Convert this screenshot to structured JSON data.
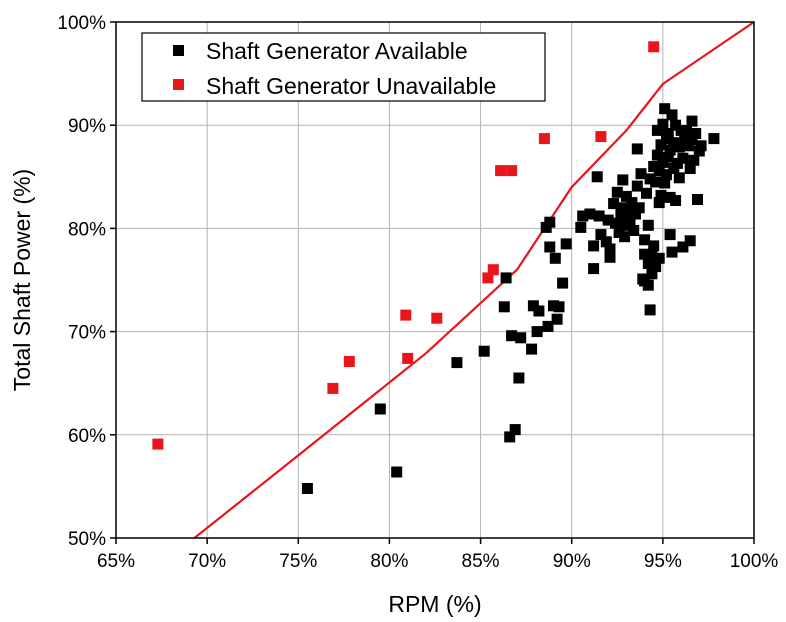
{
  "chart_data": {
    "type": "scatter",
    "xlabel": "RPM (%)",
    "ylabel": "Total Shaft Power (%)",
    "xlim": [
      65,
      100
    ],
    "ylim": [
      50,
      100
    ],
    "x_ticks": [
      65,
      70,
      75,
      80,
      85,
      90,
      95,
      100
    ],
    "y_ticks": [
      50,
      60,
      70,
      80,
      90,
      100
    ],
    "x_tick_labels": [
      "65%",
      "70%",
      "75%",
      "80%",
      "85%",
      "90%",
      "95%",
      "100%"
    ],
    "y_tick_labels": [
      "50%",
      "60%",
      "70%",
      "80%",
      "90%",
      "100%"
    ],
    "grid": true,
    "legend_position": "top-left",
    "series": [
      {
        "name": "Shaft Generator Available",
        "color": "#000000",
        "marker": "square",
        "points": [
          [
            75.5,
            54.8
          ],
          [
            79.5,
            62.5
          ],
          [
            80.4,
            56.4
          ],
          [
            83.7,
            67.0
          ],
          [
            85.2,
            68.1
          ],
          [
            86.3,
            72.4
          ],
          [
            86.4,
            75.2
          ],
          [
            86.6,
            59.8
          ],
          [
            86.7,
            69.6
          ],
          [
            86.9,
            60.5
          ],
          [
            87.1,
            65.5
          ],
          [
            87.2,
            69.4
          ],
          [
            87.8,
            68.3
          ],
          [
            87.9,
            72.5
          ],
          [
            88.1,
            70.0
          ],
          [
            88.2,
            72.0
          ],
          [
            88.6,
            80.1
          ],
          [
            88.7,
            70.5
          ],
          [
            88.8,
            78.2
          ],
          [
            88.8,
            80.6
          ],
          [
            89.0,
            72.5
          ],
          [
            89.1,
            77.1
          ],
          [
            89.2,
            71.2
          ],
          [
            89.3,
            72.4
          ],
          [
            89.5,
            74.7
          ],
          [
            89.7,
            78.5
          ],
          [
            90.5,
            80.1
          ],
          [
            90.6,
            81.2
          ],
          [
            91.0,
            81.4
          ],
          [
            91.2,
            76.1
          ],
          [
            91.2,
            78.3
          ],
          [
            91.4,
            85.0
          ],
          [
            91.5,
            81.2
          ],
          [
            91.6,
            79.4
          ],
          [
            91.9,
            78.7
          ],
          [
            92.0,
            80.8
          ],
          [
            92.1,
            77.2
          ],
          [
            92.1,
            78.0
          ],
          [
            92.3,
            82.4
          ],
          [
            92.4,
            80.5
          ],
          [
            92.5,
            83.5
          ],
          [
            92.6,
            79.6
          ],
          [
            92.7,
            81.0
          ],
          [
            92.7,
            82.0
          ],
          [
            92.8,
            84.7
          ],
          [
            92.9,
            79.2
          ],
          [
            93.0,
            80.3
          ],
          [
            93.0,
            83.1
          ],
          [
            93.1,
            81.7
          ],
          [
            93.2,
            80.8
          ],
          [
            93.3,
            82.5
          ],
          [
            93.4,
            79.8
          ],
          [
            93.5,
            81.4
          ],
          [
            93.6,
            87.7
          ],
          [
            93.6,
            84.1
          ],
          [
            93.7,
            82.0
          ],
          [
            93.8,
            85.3
          ],
          [
            93.9,
            75.1
          ],
          [
            94.0,
            74.9
          ],
          [
            94.0,
            77.5
          ],
          [
            94.0,
            78.9
          ],
          [
            94.1,
            83.4
          ],
          [
            94.2,
            74.5
          ],
          [
            94.2,
            76.6
          ],
          [
            94.2,
            80.3
          ],
          [
            94.3,
            72.1
          ],
          [
            94.3,
            84.8
          ],
          [
            94.4,
            75.6
          ],
          [
            94.4,
            77.3
          ],
          [
            94.5,
            78.3
          ],
          [
            94.5,
            86.0
          ],
          [
            94.6,
            76.3
          ],
          [
            94.6,
            84.5
          ],
          [
            94.7,
            89.5
          ],
          [
            94.7,
            87.1
          ],
          [
            94.8,
            77.1
          ],
          [
            94.8,
            82.5
          ],
          [
            94.8,
            85.6
          ],
          [
            94.9,
            83.2
          ],
          [
            94.9,
            88.1
          ],
          [
            95.0,
            90.1
          ],
          [
            95.0,
            86.4
          ],
          [
            95.1,
            84.4
          ],
          [
            95.1,
            91.6
          ],
          [
            95.2,
            85.2
          ],
          [
            95.2,
            88.7
          ],
          [
            95.3,
            86.9
          ],
          [
            95.3,
            89.2
          ],
          [
            95.4,
            83.0
          ],
          [
            95.4,
            79.4
          ],
          [
            95.4,
            87.6
          ],
          [
            95.5,
            91.0
          ],
          [
            95.5,
            77.7
          ],
          [
            95.6,
            85.8
          ],
          [
            95.6,
            88.3
          ],
          [
            95.7,
            82.7
          ],
          [
            95.7,
            90.0
          ],
          [
            95.8,
            86.3
          ],
          [
            95.9,
            87.9
          ],
          [
            95.9,
            84.9
          ],
          [
            96.0,
            89.5
          ],
          [
            96.1,
            78.2
          ],
          [
            96.1,
            86.8
          ],
          [
            96.2,
            88.9
          ],
          [
            96.3,
            89.4
          ],
          [
            96.4,
            88.0
          ],
          [
            96.5,
            85.8
          ],
          [
            96.5,
            78.8
          ],
          [
            96.6,
            90.4
          ],
          [
            96.6,
            88.6
          ],
          [
            96.7,
            86.6
          ],
          [
            96.8,
            89.2
          ],
          [
            96.9,
            82.8
          ],
          [
            97.0,
            87.5
          ],
          [
            97.1,
            88.0
          ],
          [
            97.8,
            88.7
          ]
        ]
      },
      {
        "name": "Shaft Generator Unavailable",
        "color": "#e8161b",
        "marker": "square",
        "points": [
          [
            67.3,
            59.1
          ],
          [
            76.9,
            64.5
          ],
          [
            77.8,
            67.1
          ],
          [
            80.9,
            71.6
          ],
          [
            81.0,
            67.4
          ],
          [
            82.6,
            71.3
          ],
          [
            85.4,
            75.2
          ],
          [
            85.7,
            76.0
          ],
          [
            86.1,
            85.6
          ],
          [
            86.7,
            85.6
          ],
          [
            88.5,
            88.7
          ],
          [
            91.6,
            88.9
          ],
          [
            94.5,
            97.6
          ]
        ]
      }
    ],
    "trend_line": {
      "color": "#e8161b",
      "points": [
        [
          69.3,
          50.0
        ],
        [
          75.0,
          58.0
        ],
        [
          82.0,
          67.9
        ],
        [
          87.0,
          76.0
        ],
        [
          90.0,
          84.0
        ],
        [
          93.0,
          89.5
        ],
        [
          95.0,
          94.0
        ],
        [
          100.0,
          100.0
        ]
      ]
    }
  }
}
